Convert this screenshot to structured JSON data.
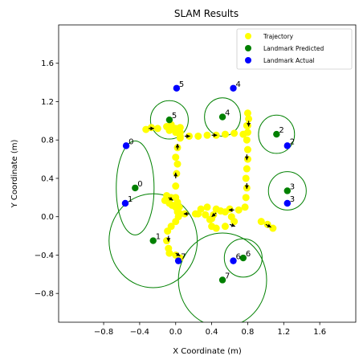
{
  "chart_data": {
    "type": "scatter",
    "title": "SLAM Results",
    "xlabel": "X Coordinate (m)",
    "ylabel": "Y Coordinate (m)",
    "xlim": [
      -1.3,
      2.0
    ],
    "ylim": [
      -1.1,
      2.0
    ],
    "xticks": [
      -0.8,
      -0.4,
      0.0,
      0.4,
      0.8,
      1.2,
      1.6
    ],
    "yticks": [
      -0.8,
      -0.4,
      0.0,
      0.4,
      0.8,
      1.2,
      1.6
    ],
    "xtick_labels": [
      "−0.8",
      "−0.4",
      "0.0",
      "0.4",
      "0.8",
      "1.2",
      "1.6"
    ],
    "ytick_labels": [
      "−0.8",
      "−0.4",
      "0.0",
      "0.4",
      "0.8",
      "1.2",
      "1.6"
    ],
    "grid": false,
    "legend_position": "top-right",
    "legend": [
      {
        "label": "Trajectory",
        "color": "#ffff00"
      },
      {
        "label": "Landmark Predicted",
        "color": "#008000"
      },
      {
        "label": "Landmark Actual",
        "color": "#0000ff"
      }
    ],
    "colors": {
      "trajectory": "#ffff00",
      "predicted": "#008000",
      "actual": "#0000ff",
      "ellipse": "#008000",
      "arrow": "#000000"
    },
    "trajectory": [
      [
        -0.33,
        0.91
      ],
      [
        -0.27,
        0.93
      ],
      [
        -0.2,
        0.92
      ],
      [
        -0.1,
        0.94
      ],
      [
        0.0,
        0.92
      ],
      [
        0.05,
        0.88
      ],
      [
        0.05,
        0.84
      ],
      [
        0.15,
        0.84
      ],
      [
        0.25,
        0.84
      ],
      [
        0.35,
        0.85
      ],
      [
        0.45,
        0.85
      ],
      [
        0.55,
        0.86
      ],
      [
        0.65,
        0.87
      ],
      [
        0.75,
        0.86
      ],
      [
        0.8,
        0.88
      ],
      [
        0.8,
        0.95
      ],
      [
        0.81,
        1.02
      ],
      [
        0.8,
        1.08
      ],
      [
        0.79,
        0.95
      ],
      [
        0.79,
        0.8
      ],
      [
        0.8,
        0.7
      ],
      [
        0.8,
        0.6
      ],
      [
        0.79,
        0.5
      ],
      [
        0.78,
        0.4
      ],
      [
        0.79,
        0.3
      ],
      [
        0.78,
        0.2
      ],
      [
        0.77,
        0.1
      ],
      [
        0.7,
        0.07
      ],
      [
        0.6,
        0.08
      ],
      [
        0.5,
        0.06
      ],
      [
        0.42,
        0.02
      ],
      [
        0.38,
        -0.03
      ],
      [
        0.4,
        -0.1
      ],
      [
        0.4,
        -0.02
      ],
      [
        0.33,
        0.02
      ],
      [
        0.22,
        0.03
      ],
      [
        0.1,
        0.03
      ],
      [
        0.05,
        0.03
      ],
      [
        0.04,
        0.1
      ],
      [
        0.02,
        0.15
      ],
      [
        -0.05,
        0.2
      ],
      [
        -0.1,
        0.22
      ],
      [
        -0.12,
        0.17
      ],
      [
        -0.07,
        0.14
      ],
      [
        -0.04,
        0.12
      ],
      [
        0.0,
        0.1
      ],
      [
        0.02,
        0.05
      ],
      [
        0.03,
        0.0
      ],
      [
        0.0,
        -0.05
      ],
      [
        -0.05,
        -0.1
      ],
      [
        -0.09,
        -0.15
      ],
      [
        -0.1,
        -0.25
      ],
      [
        -0.08,
        -0.33
      ],
      [
        -0.07,
        -0.38
      ],
      [
        0.0,
        -0.4
      ],
      [
        0.05,
        -0.43
      ],
      [
        0.0,
        0.2
      ],
      [
        0.0,
        0.32
      ],
      [
        0.01,
        0.45
      ],
      [
        0.02,
        0.55
      ],
      [
        0.0,
        0.62
      ],
      [
        0.02,
        0.72
      ],
      [
        0.05,
        0.82
      ],
      [
        0.0,
        0.88
      ],
      [
        -0.07,
        0.9
      ],
      [
        -0.05,
        0.96
      ],
      [
        0.05,
        0.93
      ],
      [
        0.25,
        0.03
      ],
      [
        0.28,
        0.08
      ],
      [
        0.35,
        0.1
      ],
      [
        0.45,
        0.08
      ],
      [
        0.55,
        0.05
      ],
      [
        0.62,
        0.0
      ],
      [
        0.65,
        -0.05
      ],
      [
        0.55,
        -0.1
      ],
      [
        0.45,
        -0.12
      ],
      [
        0.95,
        -0.05
      ],
      [
        1.02,
        -0.08
      ],
      [
        1.08,
        -0.12
      ]
    ],
    "arrows": [
      {
        "x": -0.3,
        "y": 0.92,
        "dx": 0.06,
        "dy": 0.0
      },
      {
        "x": 0.1,
        "y": 0.84,
        "dx": 0.06,
        "dy": 0.0
      },
      {
        "x": 0.4,
        "y": 0.85,
        "dx": 0.06,
        "dy": 0.0
      },
      {
        "x": 0.81,
        "y": 1.0,
        "dx": 0.0,
        "dy": -0.06
      },
      {
        "x": 0.79,
        "y": 0.65,
        "dx": 0.0,
        "dy": -0.06
      },
      {
        "x": 0.79,
        "y": 0.35,
        "dx": 0.0,
        "dy": -0.06
      },
      {
        "x": 0.65,
        "y": 0.07,
        "dx": -0.06,
        "dy": 0.0
      },
      {
        "x": 0.45,
        "y": 0.04,
        "dx": -0.05,
        "dy": -0.04
      },
      {
        "x": 0.6,
        "y": -0.08,
        "dx": 0.06,
        "dy": -0.02
      },
      {
        "x": 0.15,
        "y": 0.03,
        "dx": -0.06,
        "dy": 0.0
      },
      {
        "x": 0.0,
        "y": 0.4,
        "dx": 0.0,
        "dy": 0.06
      },
      {
        "x": 0.02,
        "y": 0.7,
        "dx": 0.0,
        "dy": 0.06
      },
      {
        "x": -0.08,
        "y": -0.2,
        "dx": 0.0,
        "dy": -0.06
      },
      {
        "x": 0.0,
        "y": -0.38,
        "dx": 0.05,
        "dy": -0.03
      },
      {
        "x": -0.08,
        "y": 0.2,
        "dx": 0.05,
        "dy": -0.03
      },
      {
        "x": 1.0,
        "y": -0.08,
        "dx": 0.06,
        "dy": -0.03
      }
    ],
    "landmarks_actual": [
      {
        "id": "0",
        "x": -0.55,
        "y": 0.74
      },
      {
        "id": "1",
        "x": -0.56,
        "y": 0.14
      },
      {
        "id": "2",
        "x": 1.24,
        "y": 0.74
      },
      {
        "id": "3",
        "x": 1.24,
        "y": 0.14
      },
      {
        "id": "4",
        "x": 0.64,
        "y": 1.34
      },
      {
        "id": "5",
        "x": 0.01,
        "y": 1.34
      },
      {
        "id": "6",
        "x": 0.64,
        "y": -0.46
      },
      {
        "id": "7",
        "x": 0.03,
        "y": -0.46
      }
    ],
    "landmarks_predicted": [
      {
        "id": "0",
        "x": -0.45,
        "y": 0.3,
        "rx": 0.21,
        "ry": 0.49
      },
      {
        "id": "1",
        "x": -0.25,
        "y": -0.25,
        "rx": 0.49,
        "ry": 0.49
      },
      {
        "id": "2",
        "x": 1.12,
        "y": 0.86,
        "rx": 0.2,
        "ry": 0.2
      },
      {
        "id": "3",
        "x": 1.24,
        "y": 0.27,
        "rx": 0.21,
        "ry": 0.2
      },
      {
        "id": "4",
        "x": 0.52,
        "y": 1.04,
        "rx": 0.2,
        "ry": 0.2
      },
      {
        "id": "5",
        "x": -0.07,
        "y": 1.01,
        "rx": 0.21,
        "ry": 0.2
      },
      {
        "id": "6",
        "x": 0.75,
        "y": -0.43,
        "rx": 0.21,
        "ry": 0.2
      },
      {
        "id": "7",
        "x": 0.52,
        "y": -0.66,
        "rx": 0.49,
        "ry": 0.49
      }
    ]
  }
}
